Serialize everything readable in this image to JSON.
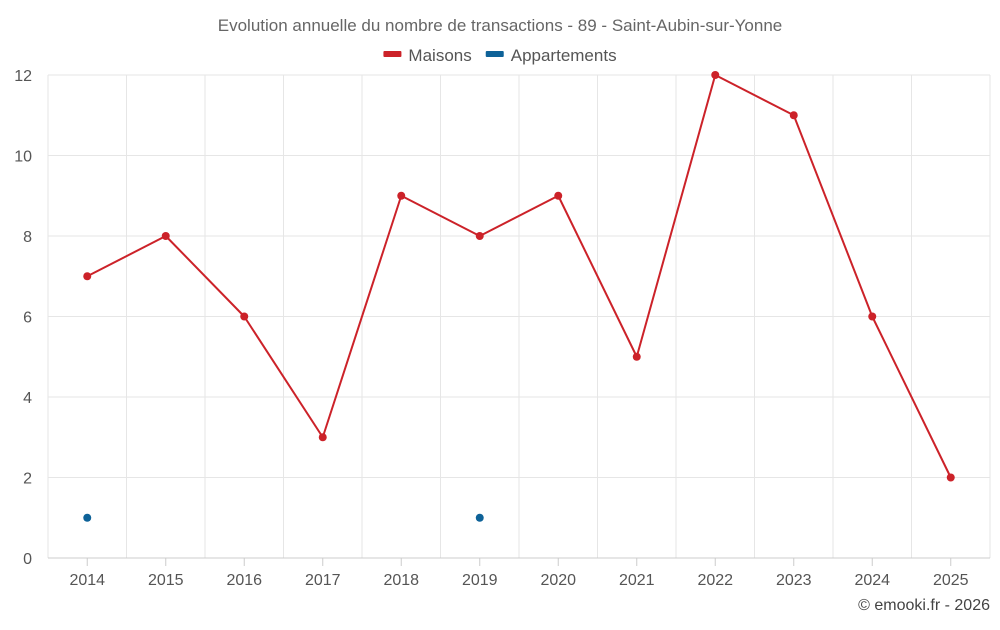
{
  "chart_data": {
    "type": "line",
    "title": "Evolution annuelle du nombre de transactions - 89 - Saint-Aubin-sur-Yonne",
    "x": [
      "2014",
      "2015",
      "2016",
      "2017",
      "2018",
      "2019",
      "2020",
      "2021",
      "2022",
      "2023",
      "2024",
      "2025"
    ],
    "ylim": [
      0,
      12
    ],
    "yticks": [
      "0",
      "2",
      "4",
      "6",
      "8",
      "10",
      "12"
    ],
    "grid": true,
    "legend_position": "top-center",
    "series": [
      {
        "name": "Maisons",
        "color": "#cc2229",
        "values": [
          7,
          8,
          6,
          3,
          9,
          8,
          9,
          5,
          12,
          11,
          6,
          2
        ]
      },
      {
        "name": "Appartements",
        "color": "#0e6298",
        "values": [
          1,
          null,
          null,
          null,
          null,
          1,
          null,
          null,
          null,
          null,
          null,
          null
        ]
      }
    ],
    "xlabel": "",
    "ylabel": ""
  },
  "footer": {
    "copyright": "© emooki.fr - 2026"
  }
}
